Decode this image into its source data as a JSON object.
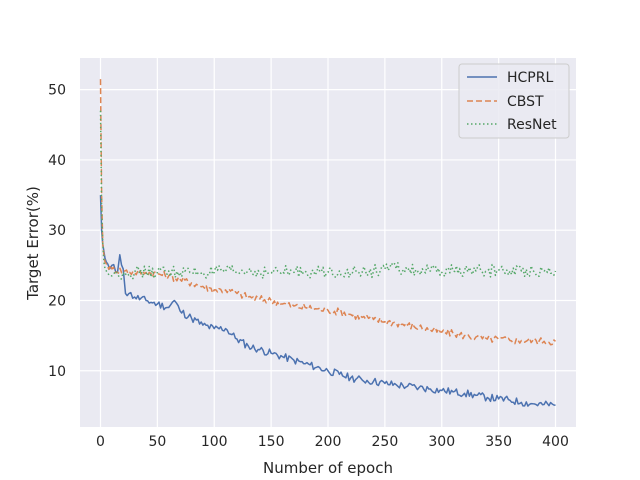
{
  "chart_data": {
    "type": "line",
    "title": "",
    "xlabel": "Number of epoch",
    "ylabel": "Target Error(%)",
    "xlim": [
      -18,
      418
    ],
    "ylim": [
      2,
      54.5
    ],
    "xticks": [
      0,
      50,
      100,
      150,
      200,
      250,
      300,
      350,
      400
    ],
    "yticks": [
      10,
      20,
      30,
      40,
      50
    ],
    "grid": true,
    "legend_position": "top-right",
    "series": [
      {
        "name": "HCPRL",
        "color": "#4c72b0",
        "style": "solid",
        "x": [
          0,
          1,
          2,
          3,
          4,
          5,
          8,
          10,
          15,
          17,
          20,
          22,
          25,
          30,
          40,
          50,
          60,
          65,
          70,
          80,
          90,
          100,
          110,
          120,
          130,
          140,
          150,
          160,
          170,
          180,
          190,
          200,
          210,
          220,
          230,
          240,
          250,
          260,
          270,
          280,
          290,
          300,
          310,
          320,
          330,
          340,
          350,
          360,
          370,
          380,
          390,
          400
        ],
        "values": [
          35,
          30,
          28,
          27,
          26,
          25.5,
          24.5,
          25,
          24,
          26.5,
          24.5,
          21,
          21,
          20.5,
          20,
          19.5,
          19,
          20,
          18.5,
          17.5,
          16.5,
          16,
          16,
          14.5,
          13.5,
          13,
          12.5,
          12,
          11.5,
          11,
          10.5,
          10,
          9.5,
          9,
          8.7,
          8.5,
          8.2,
          8,
          7.8,
          7.6,
          7.4,
          7.2,
          7,
          6.8,
          6.5,
          6.2,
          6,
          5.8,
          5.5,
          5.3,
          5.2,
          5.1
        ]
      },
      {
        "name": "CBST",
        "color": "#dd8452",
        "style": "dashed",
        "x": [
          0,
          1,
          2,
          3,
          4,
          6,
          10,
          20,
          30,
          40,
          50,
          60,
          70,
          80,
          90,
          100,
          110,
          120,
          130,
          140,
          150,
          160,
          170,
          180,
          190,
          200,
          210,
          220,
          230,
          240,
          250,
          260,
          270,
          280,
          290,
          300,
          310,
          320,
          330,
          340,
          350,
          360,
          370,
          380,
          390,
          400
        ],
        "values": [
          51.5,
          35,
          28,
          26.5,
          25.5,
          25,
          24.5,
          24.2,
          24,
          24,
          23.8,
          23.5,
          23,
          22.5,
          22,
          21.5,
          21.5,
          21,
          20.5,
          20.2,
          20,
          19.5,
          19.2,
          19,
          18.8,
          18.6,
          18.4,
          18,
          17.6,
          17.3,
          17,
          16.8,
          16.5,
          16.2,
          15.8,
          15.5,
          15.3,
          15,
          14.8,
          14.5,
          14.5,
          14.3,
          14.3,
          14.3,
          14.2,
          14.2
        ]
      },
      {
        "name": "ResNet",
        "color": "#55a868",
        "style": "dotted",
        "x": [
          0,
          1,
          2,
          3,
          4,
          6,
          8,
          10,
          15,
          20,
          30,
          40,
          50,
          60,
          70,
          80,
          90,
          100,
          110,
          120,
          130,
          140,
          150,
          160,
          170,
          180,
          190,
          200,
          210,
          220,
          230,
          240,
          250,
          260,
          270,
          280,
          290,
          300,
          310,
          320,
          330,
          340,
          350,
          360,
          370,
          380,
          390,
          400
        ],
        "values": [
          47,
          33,
          28,
          25.5,
          24.5,
          24,
          23.5,
          23.5,
          23.8,
          24,
          24,
          24,
          24,
          24.2,
          24,
          24,
          24,
          24,
          24.1,
          24,
          24.2,
          24,
          24,
          24.1,
          24,
          24.2,
          24,
          24,
          24.2,
          24,
          24,
          24.2,
          24.5,
          24.5,
          24.3,
          24.2,
          24.2,
          24,
          24.2,
          24.3,
          24.2,
          24.2,
          24.3,
          24.2,
          24.2,
          24.3,
          24.2,
          24.2
        ]
      }
    ]
  }
}
